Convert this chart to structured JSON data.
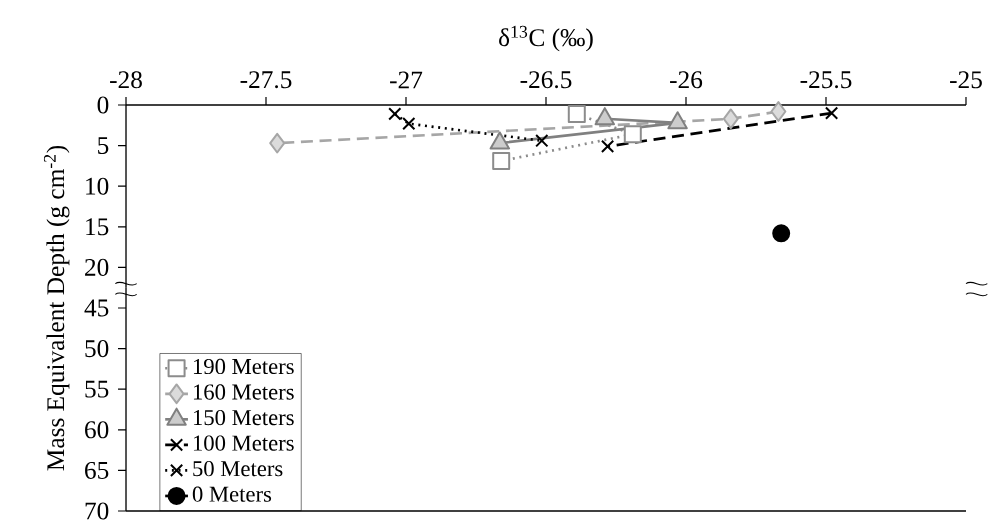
{
  "chart_data": [
    {
      "type": "line",
      "xlabel": "δ$^{13}$C (‰)",
      "ylabel": "Mass Equivalent Depth (g cm$^{-2}$)",
      "xlim": [
        -28,
        -25
      ],
      "xticks": [
        -28,
        -27.5,
        -27,
        -26.5,
        -26,
        -25.5,
        -25
      ],
      "ylim": [
        22.5,
        0
      ],
      "yticks": [
        0,
        5,
        10,
        15,
        20
      ],
      "legend": "bottom left",
      "series": [
        {
          "name": "190 Meters",
          "color": "#8c8c8c",
          "marker": "square",
          "line_style": "dotted",
          "x": [
            -26.39,
            -26.19,
            -26.66
          ],
          "values": [
            1.1,
            3.6,
            6.9
          ]
        },
        {
          "name": "160 Meters",
          "color": "#a6a6a6",
          "marker": "diamond",
          "line_style": "dashed",
          "x": [
            -25.67,
            -25.84,
            -27.46
          ],
          "values": [
            0.8,
            1.7,
            4.7
          ]
        },
        {
          "name": "150 Meters",
          "color": "#808080",
          "marker": "triangle",
          "line_style": "solid",
          "x": [
            -26.29,
            -26.03,
            -26.665
          ],
          "values": [
            1.7,
            2.2,
            4.7
          ]
        },
        {
          "name": "100 Meters",
          "color": "#000000",
          "marker": "cross",
          "line_style": "dashed",
          "x": [
            -25.48,
            -26.28
          ],
          "values": [
            1.0,
            5.1
          ]
        },
        {
          "name": "50 Meters",
          "color": "#000000",
          "marker": "cross",
          "line_style": "dotted",
          "x": [
            -27.04,
            -26.99,
            -26.515
          ],
          "values": [
            1.1,
            2.3,
            4.4
          ]
        },
        {
          "name": "0 Meters",
          "color": "#000000",
          "marker": "circle",
          "line_style": "solid",
          "x": [
            -25.66
          ],
          "values": [
            15.8
          ]
        }
      ]
    },
    {
      "type": "line",
      "xlim": [
        -28,
        -25
      ],
      "ylim": [
        70,
        42.5
      ],
      "yticks": [
        45,
        50,
        55,
        60,
        65,
        70
      ],
      "tick_labels": "y"
    }
  ]
}
